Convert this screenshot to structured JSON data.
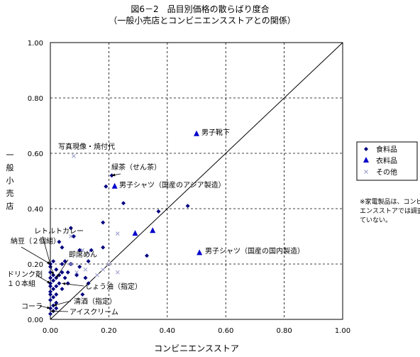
{
  "chart_data": {
    "type": "scatter",
    "title": "図6－2　品目別価格の散らばり度合",
    "subtitle": "（一般小売店とコンビニエンスストアとの関係）",
    "xlabel": "コンビニエンスストア",
    "ylabel": "一般小売店",
    "xlim": [
      0,
      1
    ],
    "ylim": [
      0,
      1
    ],
    "xticks": [
      "0.00",
      "0.20",
      "0.40",
      "0.60",
      "0.80",
      "1.00"
    ],
    "yticks": [
      "0.00",
      "0.20",
      "0.40",
      "0.60",
      "0.80",
      "1.00"
    ],
    "grid": "dashed",
    "diagonal": [
      [
        0,
        0
      ],
      [
        1,
        1
      ]
    ],
    "legend_position": "right",
    "series": [
      {
        "name": "食料品",
        "marker": "diamond",
        "color": "#000080",
        "points": [
          [
            0.0,
            0.02
          ],
          [
            0.0,
            0.04
          ],
          [
            0.0,
            0.07
          ],
          [
            0.0,
            0.09
          ],
          [
            0.0,
            0.1
          ],
          [
            0.0,
            0.12
          ],
          [
            0.0,
            0.13
          ],
          [
            0.0,
            0.15
          ],
          [
            0.0,
            0.17
          ],
          [
            0.0,
            0.19
          ],
          [
            0.0,
            0.2
          ],
          [
            0.01,
            0.03
          ],
          [
            0.01,
            0.05
          ],
          [
            0.01,
            0.08
          ],
          [
            0.01,
            0.11
          ],
          [
            0.01,
            0.14
          ],
          [
            0.01,
            0.16
          ],
          [
            0.01,
            0.21
          ],
          [
            0.02,
            0.04
          ],
          [
            0.02,
            0.06
          ],
          [
            0.02,
            0.09
          ],
          [
            0.02,
            0.12
          ],
          [
            0.02,
            0.15
          ],
          [
            0.02,
            0.18
          ],
          [
            0.03,
            0.13
          ],
          [
            0.03,
            0.16
          ],
          [
            0.03,
            0.28
          ],
          [
            0.04,
            0.11
          ],
          [
            0.04,
            0.17
          ],
          [
            0.04,
            0.2
          ],
          [
            0.04,
            0.26
          ],
          [
            0.05,
            0.15
          ],
          [
            0.05,
            0.21
          ],
          [
            0.06,
            0.13
          ],
          [
            0.06,
            0.17
          ],
          [
            0.07,
            0.2
          ],
          [
            0.07,
            0.33
          ],
          [
            0.08,
            0.3
          ],
          [
            0.09,
            0.16
          ],
          [
            0.1,
            0.19
          ],
          [
            0.1,
            0.25
          ],
          [
            0.11,
            0.09
          ],
          [
            0.12,
            0.15
          ],
          [
            0.13,
            0.13
          ],
          [
            0.13,
            0.21
          ],
          [
            0.14,
            0.25
          ],
          [
            0.18,
            0.26
          ],
          [
            0.18,
            0.35
          ],
          [
            0.19,
            0.48
          ],
          [
            0.21,
            0.52
          ],
          [
            0.25,
            0.42
          ],
          [
            0.33,
            0.23
          ],
          [
            0.37,
            0.39
          ],
          [
            0.47,
            0.41
          ]
        ]
      },
      {
        "name": "衣料品",
        "marker": "triangle",
        "color": "#0000CC",
        "points": [
          [
            0.22,
            0.48
          ],
          [
            0.29,
            0.31
          ],
          [
            0.35,
            0.32
          ],
          [
            0.5,
            0.67
          ],
          [
            0.51,
            0.24
          ]
        ]
      },
      {
        "name": "その他",
        "marker": "cross",
        "color": "#9999CC",
        "points": [
          [
            0.07,
            0.3
          ],
          [
            0.07,
            0.2
          ],
          [
            0.09,
            0.17
          ],
          [
            0.11,
            0.25
          ],
          [
            0.12,
            0.18
          ],
          [
            0.13,
            0.24
          ],
          [
            0.16,
            0.16
          ],
          [
            0.18,
            0.18
          ],
          [
            0.2,
            0.2
          ],
          [
            0.23,
            0.31
          ],
          [
            0.08,
            0.59
          ],
          [
            0.23,
            0.17
          ]
        ]
      }
    ],
    "annotations": [
      {
        "text": "写真現像・焼付代",
        "x": 0.08,
        "y": 0.59,
        "arrow": false
      },
      {
        "text": "緑茶（せん茶）",
        "x": 0.21,
        "y": 0.52,
        "arrow": true
      },
      {
        "text": "男子シャツ（国産のアジア製造）",
        "x": 0.22,
        "y": 0.48,
        "arrow": false
      },
      {
        "text": "男子靴下",
        "x": 0.5,
        "y": 0.67,
        "arrow": false
      },
      {
        "text": "男子シャツ（国産の国内製造）",
        "x": 0.51,
        "y": 0.24,
        "arrow": false
      },
      {
        "text": "レトルトカレー",
        "x": 0.01,
        "y": 0.16,
        "arrow": true
      },
      {
        "text": "即席めん",
        "x": 0.02,
        "y": 0.15,
        "arrow": true
      },
      {
        "text": "納豆（２個組）",
        "x": 0.0,
        "y": 0.2,
        "arrow": true
      },
      {
        "text": "ドリンク剤\n１０本組",
        "x": 0.0,
        "y": 0.13,
        "arrow": true
      },
      {
        "text": "しょう油（指定）",
        "x": 0.04,
        "y": 0.13,
        "arrow": true
      },
      {
        "text": "清酒（指定）",
        "x": 0.01,
        "y": 0.05,
        "arrow": true
      },
      {
        "text": "コーラ",
        "x": 0.0,
        "y": 0.04,
        "arrow": true
      },
      {
        "text": "アイスクリーム",
        "x": 0.0,
        "y": 0.03,
        "arrow": true
      }
    ],
    "note": "※家電製品は、コンビニエンスストアでは調査していない。"
  }
}
